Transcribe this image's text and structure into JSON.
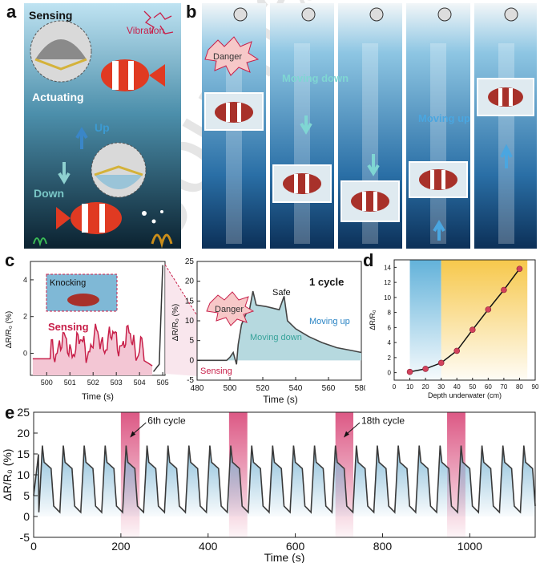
{
  "panel_labels": {
    "a": "a",
    "b": "b",
    "c": "c",
    "d": "d",
    "e": "e"
  },
  "panel_a": {
    "sensing": "Sensing",
    "vibration": "Vibration",
    "actuating": "Actuating",
    "up": "Up",
    "down": "Down"
  },
  "panel_b": {
    "danger": "Danger",
    "moving_down": "Moving down",
    "moving_up": "Moving up"
  },
  "panel_c": {
    "inset": {
      "knocking": "Knocking",
      "sensing": "Sensing",
      "ylabel": "ΔR/R₀ (%)",
      "xlabel": "Time (s)",
      "xticks": [
        500,
        501,
        502,
        503,
        504,
        505
      ],
      "yticks": [
        0,
        2,
        4
      ]
    },
    "main": {
      "title": "1 cycle",
      "danger": "Danger",
      "sensing": "Sensing",
      "moving_down": "Moving down",
      "safe": "Safe",
      "moving_up": "Moving up",
      "ylabel": "ΔR/R₀ (%)",
      "xlabel": "Time (s)",
      "xticks": [
        480,
        500,
        520,
        540,
        560,
        580
      ],
      "yticks": [
        -5,
        0,
        5,
        10,
        15,
        20,
        25
      ]
    }
  },
  "chart_data": [
    {
      "type": "line",
      "panel": "d",
      "xlabel": "Depth underwater (cm)",
      "ylabel": "ΔR/R₀",
      "x": [
        10,
        20,
        30,
        40,
        50,
        60,
        70,
        80
      ],
      "y": [
        0.1,
        0.5,
        1.3,
        2.9,
        5.7,
        8.4,
        11.0,
        13.8
      ],
      "xlim": [
        0,
        90
      ],
      "ylim": [
        -1,
        15
      ],
      "xticks": [
        0,
        10,
        20,
        30,
        40,
        50,
        60,
        70,
        80,
        90
      ],
      "yticks": [
        0,
        2,
        4,
        6,
        8,
        10,
        12,
        14
      ],
      "shaded_regions": [
        {
          "x": [
            10,
            30
          ],
          "color": "#5aaed8"
        },
        {
          "x": [
            30,
            85
          ],
          "color": "#f6c542"
        }
      ]
    },
    {
      "type": "line",
      "panel": "e",
      "xlabel": "Time (s)",
      "ylabel": "ΔR/R₀ (%)",
      "xlim": [
        0,
        1150
      ],
      "ylim": [
        -5,
        25
      ],
      "xticks": [
        0,
        200,
        400,
        600,
        800,
        1000
      ],
      "yticks": [
        -5,
        0,
        5,
        10,
        15,
        20,
        25
      ],
      "cycles": 24,
      "cycle_period_s": 48,
      "first_peak_s": 20,
      "peak_value": 17,
      "shoulder_value": 13,
      "baseline_value": 1,
      "highlighted_cycles": [
        {
          "x": [
            200,
            243
          ],
          "label": "6th cycle"
        },
        {
          "x": [
            448,
            490
          ],
          "label": ""
        },
        {
          "x": [
            692,
            733
          ],
          "label": "18th cycle"
        },
        {
          "x": [
            948,
            990
          ],
          "label": ""
        }
      ]
    }
  ],
  "colors": {
    "line": "#3a3a3a",
    "fill_blue": "#7fb8d6",
    "highlight": "#d63b6f",
    "sensing": "#c8204a",
    "accent_blue": "#2a84c4",
    "accent_teal": "#37a39a",
    "marker": "#d2425c"
  },
  "watermark": "Journal Pre-proof"
}
